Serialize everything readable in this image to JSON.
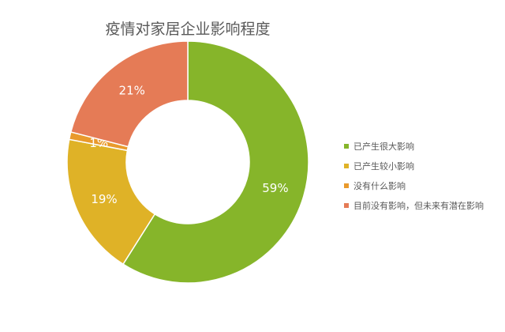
{
  "chart_data": {
    "type": "pie",
    "donut": true,
    "title": "疫情对家居企业影响程度",
    "categories": [
      "已产生很大影响",
      "已产生较小影响",
      "没有什么影响",
      "目前没有影响，但未来有潜在影响"
    ],
    "values": [
      59,
      19,
      1,
      21
    ],
    "data_labels": [
      "59%",
      "19%",
      "1%",
      "21%"
    ],
    "colors": [
      "#86b52a",
      "#dfb227",
      "#e99a2c",
      "#e57b56"
    ],
    "legend_position": "right"
  }
}
